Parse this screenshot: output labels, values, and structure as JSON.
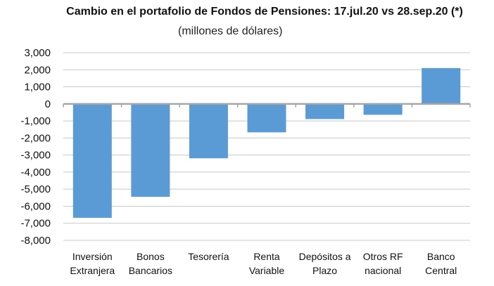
{
  "chart_data": {
    "type": "bar",
    "title": "Cambio en el portafolio de Fondos de Pensiones: 17.jul.20 vs 28.sep.20 (*)",
    "subtitle": "(millones de dólares)",
    "categories": [
      [
        "Inversión",
        "Extranjera"
      ],
      [
        "Bonos",
        "Bancarios"
      ],
      [
        "Tesorería"
      ],
      [
        "Renta",
        "Variable"
      ],
      [
        "Depósitos a",
        "Plazo"
      ],
      [
        "Otros RF",
        "nacional"
      ],
      [
        "Banco",
        "Central"
      ]
    ],
    "values": [
      -6680,
      -5450,
      -3190,
      -1670,
      -890,
      -640,
      2100
    ],
    "ylim": [
      -8000,
      3000
    ],
    "yticks": [
      3000,
      2000,
      1000,
      0,
      -1000,
      -2000,
      -3000,
      -4000,
      -5000,
      -6000,
      -7000,
      -8000
    ],
    "ytick_labels": [
      "3,000",
      "2,000",
      "1,000",
      "0",
      "-1,000",
      "-2,000",
      "-3,000",
      "-4,000",
      "-5,000",
      "-6,000",
      "-7,000",
      "-8,000"
    ],
    "grid": true,
    "colors": {
      "bar": "#5b9bd5",
      "grid": "#c8c8c8",
      "axis": "#a6a6a6"
    }
  }
}
